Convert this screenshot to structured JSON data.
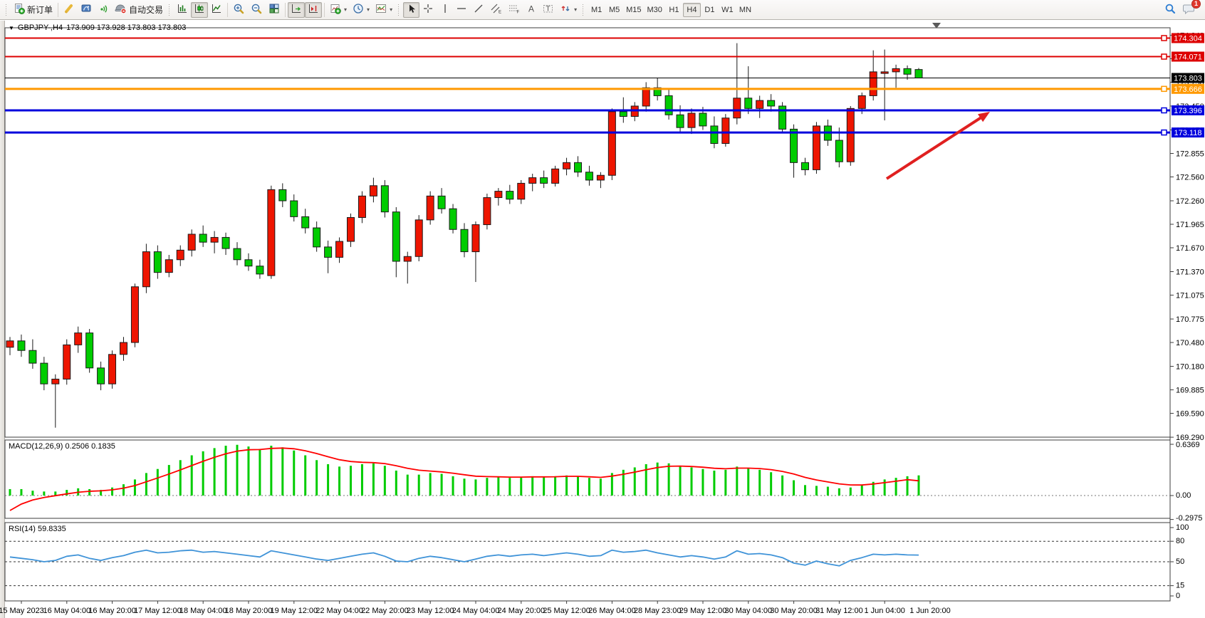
{
  "toolbar": {
    "new_order_label": "新订单",
    "auto_trading_label": "自动交易",
    "badge_count": "1",
    "icons": [
      "new-order-icon",
      "crayon-icon",
      "mql-community-icon",
      "signals-icon",
      "auto-trading-icon",
      "bar-chart-icon",
      "candlestick-chart-icon",
      "line-chart-icon",
      "zoom-in-icon",
      "zoom-out-icon",
      "tile-windows-icon",
      "auto-scroll-icon",
      "chart-shift-icon",
      "indicators-icon",
      "period-icon",
      "templates-icon",
      "cursor-icon",
      "crosshair-icon",
      "vertical-line-icon",
      "horizontal-line-icon",
      "trendline-icon",
      "equidistant-channel-icon",
      "fibonacci-icon",
      "text-icon",
      "text-label-icon",
      "arrows-icon",
      "search-icon",
      "chat-icon"
    ],
    "timeframes": [
      {
        "label": "M1",
        "active": false
      },
      {
        "label": "M5",
        "active": false
      },
      {
        "label": "M15",
        "active": false
      },
      {
        "label": "M30",
        "active": false
      },
      {
        "label": "H1",
        "active": false
      },
      {
        "label": "H4",
        "active": true
      },
      {
        "label": "D1",
        "active": false
      },
      {
        "label": "W1",
        "active": false
      },
      {
        "label": "MN",
        "active": false
      }
    ]
  },
  "chart": {
    "title": {
      "symbol": "GBPJPY-,H4",
      "ohlc": "173.909 173.928 173.803 173.803"
    },
    "macd_label": "MACD(12,26,9) 0.2506 0.1835",
    "rsi_label": "RSI(14) 59.8335"
  },
  "chart_data": {
    "type": "candlestick",
    "title": "GBPJPY- H4",
    "colors": {
      "bull": "#ee1500",
      "bear": "#00cc00",
      "outline": "#1a1a1a",
      "macd_hist": "#00cc00",
      "macd_signal": "#ff0000",
      "rsi_line": "#3f93d8",
      "level_red": "#dd0000",
      "level_orange": "#ff9900",
      "level_blue": "#0000dd",
      "price_line": "#000000",
      "arrow": "#e02020"
    },
    "price_axis_ticks": [
      174.34,
      174.045,
      173.75,
      173.45,
      173.15,
      172.855,
      172.56,
      172.26,
      171.965,
      171.67,
      171.37,
      171.075,
      170.775,
      170.48,
      170.18,
      169.885,
      169.59,
      169.29
    ],
    "levels": [
      {
        "price": 174.304,
        "color": "#dd0000",
        "width": 2,
        "marker": true
      },
      {
        "price": 174.071,
        "color": "#dd0000",
        "width": 2,
        "marker": true
      },
      {
        "price": 173.803,
        "color": "#000000",
        "width": 1,
        "marker": false
      },
      {
        "price": 173.666,
        "color": "#ff9900",
        "width": 3,
        "marker": true
      },
      {
        "price": 173.396,
        "color": "#0000dd",
        "width": 3,
        "marker": true
      },
      {
        "price": 173.118,
        "color": "#0000dd",
        "width": 3,
        "marker": true
      }
    ],
    "candles": [
      [
        170.42,
        170.55,
        170.32,
        170.5
      ],
      [
        170.5,
        170.58,
        170.3,
        170.38
      ],
      [
        170.38,
        170.52,
        170.15,
        170.22
      ],
      [
        170.22,
        170.3,
        169.88,
        169.96
      ],
      [
        169.96,
        170.08,
        169.41,
        170.02
      ],
      [
        170.02,
        170.52,
        169.95,
        170.45
      ],
      [
        170.45,
        170.68,
        170.35,
        170.6
      ],
      [
        170.6,
        170.65,
        170.1,
        170.16
      ],
      [
        170.16,
        170.24,
        169.88,
        169.96
      ],
      [
        169.96,
        170.38,
        169.9,
        170.33
      ],
      [
        170.33,
        170.55,
        170.25,
        170.48
      ],
      [
        170.48,
        171.22,
        170.42,
        171.18
      ],
      [
        171.18,
        171.72,
        171.1,
        171.62
      ],
      [
        171.62,
        171.7,
        171.28,
        171.36
      ],
      [
        171.36,
        171.58,
        171.3,
        171.52
      ],
      [
        171.52,
        171.7,
        171.44,
        171.64
      ],
      [
        171.64,
        171.9,
        171.56,
        171.84
      ],
      [
        171.84,
        171.95,
        171.68,
        171.74
      ],
      [
        171.74,
        171.88,
        171.6,
        171.8
      ],
      [
        171.8,
        171.86,
        171.58,
        171.66
      ],
      [
        171.66,
        171.74,
        171.45,
        171.52
      ],
      [
        171.52,
        171.6,
        171.38,
        171.44
      ],
      [
        171.44,
        171.52,
        171.28,
        171.34
      ],
      [
        171.32,
        172.45,
        171.28,
        172.4
      ],
      [
        172.4,
        172.48,
        172.18,
        172.26
      ],
      [
        172.26,
        172.34,
        172.0,
        172.06
      ],
      [
        172.06,
        172.16,
        171.85,
        171.92
      ],
      [
        171.92,
        172.0,
        171.62,
        171.68
      ],
      [
        171.68,
        171.76,
        171.35,
        171.55
      ],
      [
        171.55,
        171.8,
        171.48,
        171.75
      ],
      [
        171.75,
        172.1,
        171.68,
        172.05
      ],
      [
        172.05,
        172.38,
        171.98,
        172.32
      ],
      [
        172.32,
        172.55,
        172.24,
        172.45
      ],
      [
        172.45,
        172.52,
        172.05,
        172.12
      ],
      [
        172.12,
        172.18,
        171.3,
        171.5
      ],
      [
        171.5,
        171.62,
        171.22,
        171.56
      ],
      [
        171.56,
        172.08,
        171.5,
        172.02
      ],
      [
        172.02,
        172.38,
        171.96,
        172.32
      ],
      [
        172.32,
        172.42,
        172.1,
        172.16
      ],
      [
        172.16,
        172.22,
        171.85,
        171.9
      ],
      [
        171.9,
        171.98,
        171.55,
        171.62
      ],
      [
        171.62,
        172.0,
        171.24,
        171.96
      ],
      [
        171.96,
        172.35,
        171.9,
        172.3
      ],
      [
        172.3,
        172.42,
        172.2,
        172.38
      ],
      [
        172.38,
        172.46,
        172.22,
        172.28
      ],
      [
        172.28,
        172.52,
        172.22,
        172.48
      ],
      [
        172.48,
        172.6,
        172.38,
        172.55
      ],
      [
        172.55,
        172.64,
        172.42,
        172.48
      ],
      [
        172.48,
        172.7,
        172.44,
        172.66
      ],
      [
        172.66,
        172.8,
        172.58,
        172.74
      ],
      [
        172.74,
        172.82,
        172.56,
        172.62
      ],
      [
        172.62,
        172.7,
        172.45,
        172.52
      ],
      [
        172.52,
        172.62,
        172.42,
        172.58
      ],
      [
        172.58,
        173.42,
        172.52,
        173.38
      ],
      [
        173.38,
        173.56,
        173.24,
        173.32
      ],
      [
        173.32,
        173.5,
        173.26,
        173.45
      ],
      [
        173.45,
        173.75,
        173.38,
        173.68
      ],
      [
        173.68,
        173.8,
        173.52,
        173.58
      ],
      [
        173.58,
        173.66,
        173.28,
        173.34
      ],
      [
        173.34,
        173.46,
        173.12,
        173.18
      ],
      [
        173.18,
        173.42,
        173.1,
        173.36
      ],
      [
        173.36,
        173.44,
        173.15,
        173.2
      ],
      [
        173.2,
        173.32,
        172.92,
        172.98
      ],
      [
        172.98,
        173.35,
        172.94,
        173.3
      ],
      [
        173.3,
        174.24,
        173.22,
        173.55
      ],
      [
        173.55,
        173.95,
        173.35,
        173.42
      ],
      [
        173.42,
        173.58,
        173.3,
        173.52
      ],
      [
        173.52,
        173.6,
        173.38,
        173.45
      ],
      [
        173.45,
        173.5,
        173.12,
        173.16
      ],
      [
        173.16,
        173.22,
        172.55,
        172.74
      ],
      [
        172.74,
        172.8,
        172.58,
        172.65
      ],
      [
        172.65,
        173.25,
        172.6,
        173.2
      ],
      [
        173.2,
        173.28,
        172.95,
        173.02
      ],
      [
        173.02,
        173.18,
        172.68,
        172.75
      ],
      [
        172.75,
        173.45,
        172.7,
        173.42
      ],
      [
        173.42,
        173.62,
        173.35,
        173.58
      ],
      [
        173.58,
        174.15,
        173.52,
        173.88
      ],
      [
        173.86,
        174.16,
        173.27,
        173.88
      ],
      [
        173.88,
        173.97,
        173.68,
        173.92
      ],
      [
        173.92,
        173.96,
        173.78,
        173.85
      ],
      [
        173.909,
        173.928,
        173.803,
        173.803
      ]
    ],
    "macd": {
      "params": "12,26,9",
      "value": 0.2506,
      "signal_value": 0.1835,
      "axis": [
        "0.6369",
        "0.00",
        "-0.2975"
      ],
      "ymax": 0.6369,
      "ymin": -0.2975,
      "hist": [
        0.08,
        0.08,
        0.06,
        0.05,
        0.05,
        0.07,
        0.09,
        0.08,
        0.07,
        0.1,
        0.14,
        0.2,
        0.28,
        0.33,
        0.38,
        0.44,
        0.5,
        0.55,
        0.59,
        0.62,
        0.63,
        0.61,
        0.58,
        0.62,
        0.6,
        0.56,
        0.5,
        0.44,
        0.39,
        0.36,
        0.37,
        0.39,
        0.4,
        0.37,
        0.31,
        0.26,
        0.26,
        0.28,
        0.27,
        0.24,
        0.21,
        0.2,
        0.22,
        0.23,
        0.22,
        0.23,
        0.24,
        0.23,
        0.24,
        0.25,
        0.24,
        0.22,
        0.21,
        0.28,
        0.32,
        0.35,
        0.39,
        0.41,
        0.4,
        0.37,
        0.35,
        0.33,
        0.31,
        0.32,
        0.36,
        0.34,
        0.32,
        0.29,
        0.25,
        0.19,
        0.13,
        0.12,
        0.11,
        0.09,
        0.1,
        0.13,
        0.17,
        0.2,
        0.22,
        0.24,
        0.2506
      ],
      "signal": [
        -0.186,
        -0.106,
        -0.056,
        -0.024,
        -0.002,
        0.02,
        0.041,
        0.053,
        0.058,
        0.071,
        0.092,
        0.124,
        0.171,
        0.219,
        0.267,
        0.319,
        0.373,
        0.426,
        0.475,
        0.519,
        0.552,
        0.569,
        0.572,
        0.586,
        0.59,
        0.581,
        0.557,
        0.522,
        0.482,
        0.445,
        0.423,
        0.413,
        0.409,
        0.397,
        0.371,
        0.338,
        0.315,
        0.304,
        0.294,
        0.278,
        0.258,
        0.241,
        0.235,
        0.233,
        0.229,
        0.229,
        0.232,
        0.232,
        0.234,
        0.239,
        0.239,
        0.233,
        0.226,
        0.242,
        0.265,
        0.291,
        0.321,
        0.348,
        0.364,
        0.366,
        0.361,
        0.352,
        0.339,
        0.333,
        0.341,
        0.341,
        0.335,
        0.322,
        0.3,
        0.267,
        0.226,
        0.194,
        0.169,
        0.145,
        0.132,
        0.131,
        0.143,
        0.16,
        0.178,
        0.197,
        0.1835
      ]
    },
    "rsi": {
      "period": 14,
      "value": 59.8335,
      "axis": [
        "100",
        "80",
        "50",
        "15",
        "0"
      ],
      "dashed_levels": [
        80,
        50,
        15
      ],
      "values": [
        57,
        55,
        53,
        50,
        52,
        58,
        60,
        55,
        52,
        56,
        59,
        64,
        67,
        63,
        64,
        66,
        67,
        64,
        65,
        63,
        61,
        59,
        57,
        66,
        63,
        60,
        57,
        54,
        52,
        55,
        58,
        61,
        63,
        58,
        51,
        50,
        55,
        58,
        56,
        53,
        50,
        54,
        58,
        60,
        58,
        60,
        61,
        59,
        61,
        63,
        61,
        58,
        59,
        67,
        64,
        65,
        67,
        63,
        60,
        57,
        59,
        57,
        54,
        57,
        66,
        61,
        62,
        60,
        56,
        48,
        45,
        51,
        47,
        44,
        52,
        56,
        61,
        60,
        61,
        60,
        59.83
      ]
    },
    "time_labels": [
      "15 May 2023",
      "16 May 04:00",
      "16 May 20:00",
      "17 May 12:00",
      "18 May 04:00",
      "18 May 20:00",
      "19 May 12:00",
      "22 May 04:00",
      "22 May 20:00",
      "23 May 12:00",
      "24 May 04:00",
      "24 May 20:00",
      "25 May 12:00",
      "26 May 04:00",
      "28 May 23:00",
      "29 May 12:00",
      "30 May 04:00",
      "30 May 20:00",
      "31 May 12:00",
      "1 Jun 04:00",
      "1 Jun 20:00"
    ],
    "annotations": {
      "trend_arrow": {
        "from_xy": [
          1245,
          222
        ],
        "to_xy": [
          1390,
          128
        ],
        "color": "#e02020"
      }
    }
  }
}
